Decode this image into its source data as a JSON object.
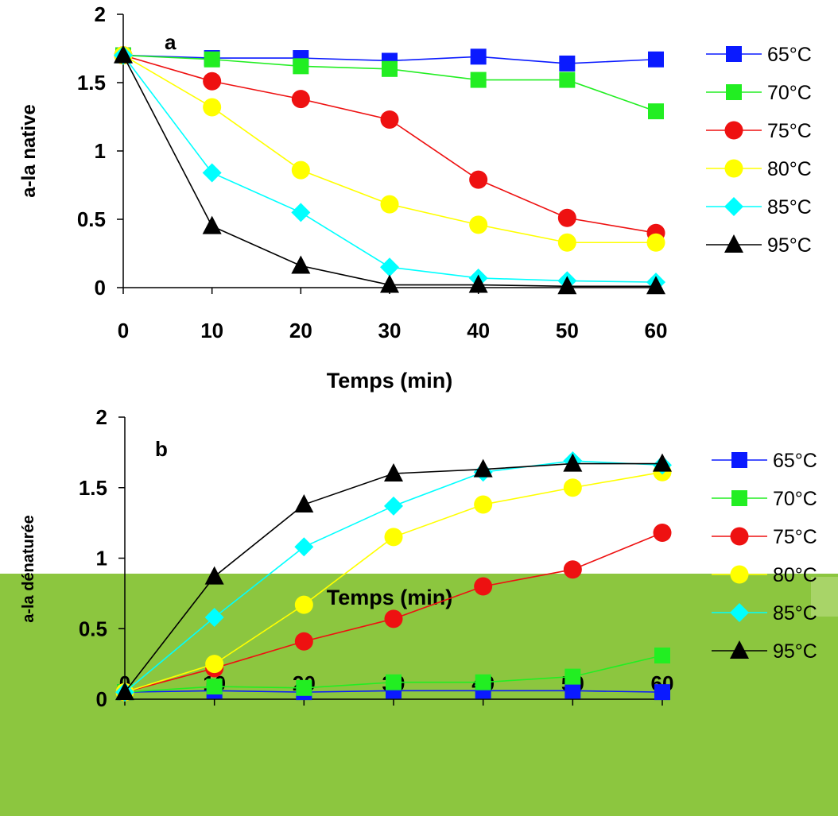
{
  "colors": {
    "65": "#0a1aff",
    "70": "#22ee22",
    "75": "#ee1111",
    "80": "#ffff00",
    "85": "#00ffff",
    "95": "#000000",
    "footer_bar": "#8cc63f",
    "footer_accent": "#a8d468"
  },
  "chart_data": [
    {
      "type": "line",
      "panel_label": "a",
      "xlabel": "Temps (min)",
      "ylabel": "a-la native",
      "x": [
        0,
        10,
        20,
        30,
        40,
        50,
        60
      ],
      "xlim": [
        0,
        60
      ],
      "ylim": [
        0,
        2
      ],
      "yticks": [
        "0",
        "0.5",
        "1",
        "1.5",
        "2"
      ],
      "xticks": [
        "0",
        "10",
        "20",
        "30",
        "40",
        "50",
        "60"
      ],
      "grid": false,
      "legend_position": "right",
      "series": [
        {
          "name": "65°C",
          "marker": "square",
          "color_key": "65",
          "values": [
            1.7,
            1.68,
            1.68,
            1.66,
            1.69,
            1.64,
            1.67
          ]
        },
        {
          "name": "70°C",
          "marker": "square",
          "color_key": "70",
          "values": [
            1.7,
            1.67,
            1.62,
            1.6,
            1.52,
            1.52,
            1.29
          ]
        },
        {
          "name": "75°C",
          "marker": "circle",
          "color_key": "75",
          "values": [
            1.7,
            1.51,
            1.38,
            1.23,
            0.79,
            0.51,
            0.4
          ]
        },
        {
          "name": "80°C",
          "marker": "circle",
          "color_key": "80",
          "values": [
            1.7,
            1.32,
            0.86,
            0.61,
            0.46,
            0.33,
            0.33
          ]
        },
        {
          "name": "85°C",
          "marker": "diamond",
          "color_key": "85",
          "values": [
            1.7,
            0.84,
            0.55,
            0.15,
            0.07,
            0.05,
            0.04
          ]
        },
        {
          "name": "95°C",
          "marker": "triangle",
          "color_key": "95",
          "values": [
            1.7,
            0.45,
            0.16,
            0.02,
            0.02,
            0.01,
            0.01
          ]
        }
      ]
    },
    {
      "type": "line",
      "panel_label": "b",
      "xlabel": "Temps (min)",
      "ylabel": "a-la dénaturée",
      "x": [
        0,
        10,
        20,
        30,
        40,
        50,
        60
      ],
      "xlim": [
        0,
        60
      ],
      "ylim": [
        0,
        2
      ],
      "yticks": [
        "0",
        "0.5",
        "1",
        "1.5",
        "2"
      ],
      "xticks": [
        "0",
        "10",
        "20",
        "30",
        "40",
        "50",
        "60"
      ],
      "grid": false,
      "legend_position": "right",
      "series": [
        {
          "name": "65°C",
          "marker": "square",
          "color_key": "65",
          "values": [
            0.05,
            0.06,
            0.05,
            0.06,
            0.06,
            0.06,
            0.05
          ]
        },
        {
          "name": "70°C",
          "marker": "square",
          "color_key": "70",
          "values": [
            0.05,
            0.09,
            0.08,
            0.12,
            0.12,
            0.16,
            0.31
          ]
        },
        {
          "name": "75°C",
          "marker": "circle",
          "color_key": "75",
          "values": [
            0.05,
            0.22,
            0.41,
            0.57,
            0.8,
            0.92,
            1.18
          ]
        },
        {
          "name": "80°C",
          "marker": "circle",
          "color_key": "80",
          "values": [
            0.05,
            0.25,
            0.67,
            1.15,
            1.38,
            1.5,
            1.61
          ]
        },
        {
          "name": "85°C",
          "marker": "diamond",
          "color_key": "85",
          "values": [
            0.05,
            0.58,
            1.08,
            1.37,
            1.61,
            1.69,
            1.66
          ]
        },
        {
          "name": "95°C",
          "marker": "triangle",
          "color_key": "95",
          "values": [
            0.05,
            0.87,
            1.38,
            1.6,
            1.63,
            1.67,
            1.67
          ]
        }
      ]
    }
  ]
}
